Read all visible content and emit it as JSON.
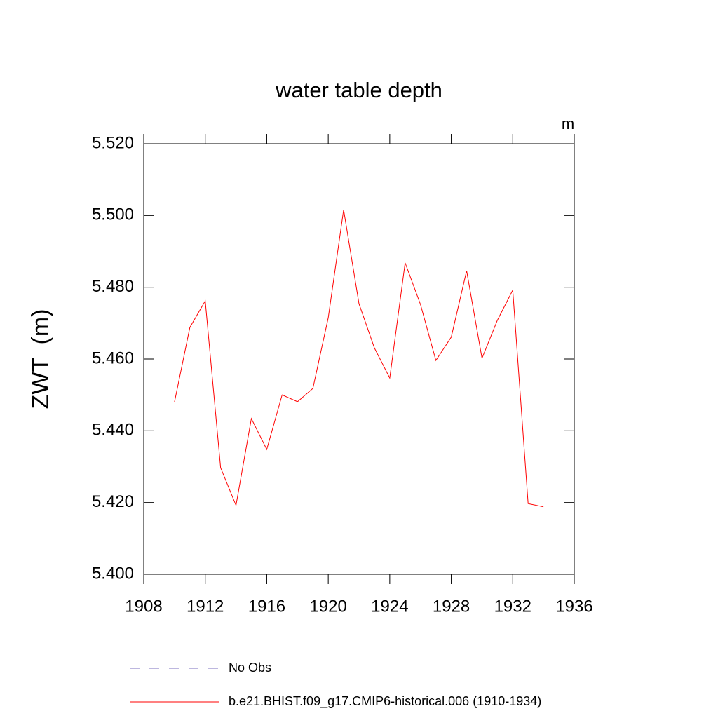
{
  "chart_data": {
    "type": "line",
    "title": "water table depth",
    "units": "m",
    "y_label": "ZWT  (m)",
    "x": [
      1910,
      1911,
      1912,
      1913,
      1914,
      1915,
      1916,
      1917,
      1918,
      1919,
      1920,
      1921,
      1922,
      1923,
      1924,
      1925,
      1926,
      1927,
      1928,
      1929,
      1930,
      1931,
      1932,
      1933,
      1934
    ],
    "series": [
      {
        "name": "b.e21.BHIST.f09_g17.CMIP6-historical.006 (1910-1934)",
        "color": "#ff0000",
        "values": [
          5.448,
          5.4688,
          5.4762,
          5.4297,
          5.4192,
          5.4434,
          5.4348,
          5.45,
          5.4481,
          5.4518,
          5.4715,
          5.5016,
          5.4754,
          5.4631,
          5.4547,
          5.4868,
          5.4752,
          5.4596,
          5.4661,
          5.4846,
          5.4602,
          5.4708,
          5.4792,
          5.4197,
          5.4188
        ]
      }
    ],
    "legend_extra": {
      "text": "No Obs",
      "color": "#7b6fbf",
      "style": "dashed"
    },
    "xlim": [
      1908,
      1936
    ],
    "xticks": [
      1908,
      1912,
      1916,
      1920,
      1924,
      1928,
      1932,
      1936
    ],
    "ylim": [
      5.4,
      5.52
    ],
    "yticks": [
      {
        "value": 5.4,
        "label": "5.400"
      },
      {
        "value": 5.42,
        "label": "5.420"
      },
      {
        "value": 5.44,
        "label": "5.440"
      },
      {
        "value": 5.46,
        "label": "5.460"
      },
      {
        "value": 5.48,
        "label": "5.480"
      },
      {
        "value": 5.5,
        "label": "5.500"
      },
      {
        "value": 5.52,
        "label": "5.520"
      }
    ]
  }
}
